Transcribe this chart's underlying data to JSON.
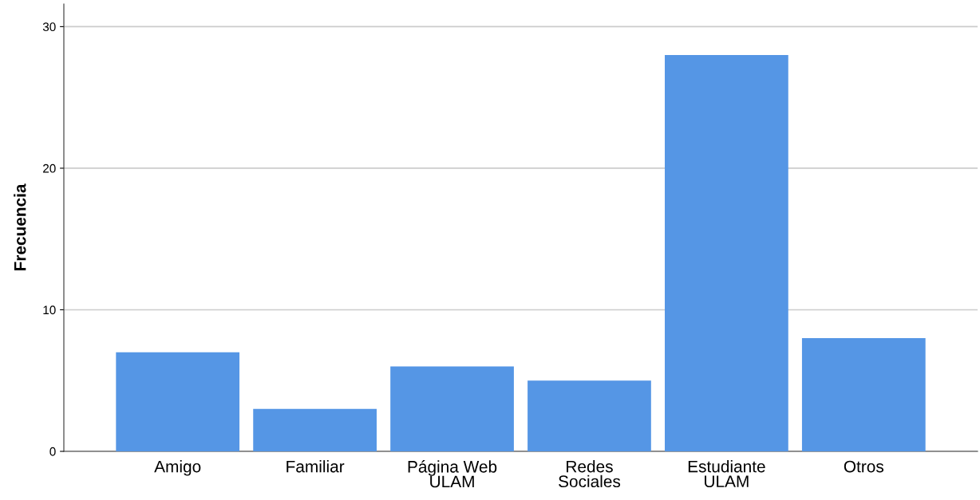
{
  "chart_data": {
    "type": "bar",
    "ylabel": "Frecuencia",
    "categories": [
      "Amigo",
      "Familiar",
      "Página Web\nULAM",
      "Redes\nSociales",
      "Estudiante\nULAM",
      "Otros"
    ],
    "values": [
      7,
      3,
      6,
      5,
      28,
      8
    ],
    "color": "#5596e5",
    "ylim": [
      0,
      31.6
    ],
    "yticks": [
      0,
      10,
      20,
      30
    ],
    "grid": "y",
    "legend": false
  }
}
